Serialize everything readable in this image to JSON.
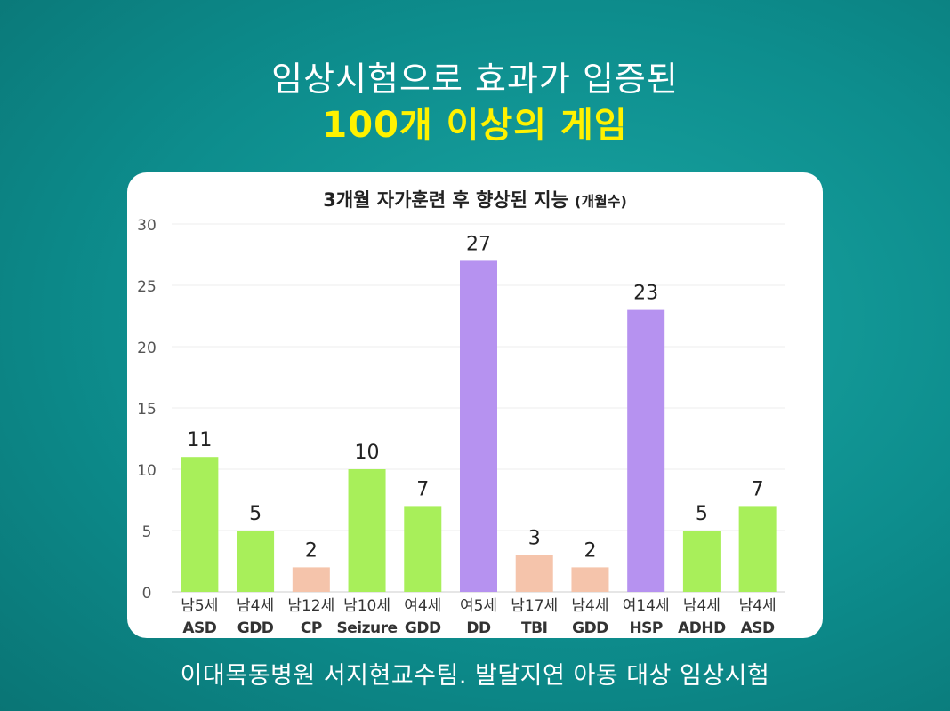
{
  "headline": {
    "line1": "임상시험으로 효과가 입증된",
    "line2": "100개 이상의 게임"
  },
  "source_note": "이대목동병원 서지현교수팀. 발달지연 아동 대상 임상시험",
  "chart_data": {
    "type": "bar",
    "title": "3개월 자가훈련 후 향상된 지능",
    "title_unit": "(개월수)",
    "categories": [
      {
        "line1": "남5세",
        "line2": "ASD"
      },
      {
        "line1": "남4세",
        "line2": "GDD"
      },
      {
        "line1": "남12세",
        "line2": "CP"
      },
      {
        "line1": "남10세",
        "line2": "Seizure"
      },
      {
        "line1": "여4세",
        "line2": "GDD"
      },
      {
        "line1": "여5세",
        "line2": "DD"
      },
      {
        "line1": "남17세",
        "line2": "TBI"
      },
      {
        "line1": "남4세",
        "line2": "GDD"
      },
      {
        "line1": "여14세",
        "line2": "HSP"
      },
      {
        "line1": "남4세",
        "line2": "ADHD"
      },
      {
        "line1": "남4세",
        "line2": "ASD"
      }
    ],
    "values": [
      11,
      5,
      2,
      10,
      7,
      27,
      3,
      2,
      23,
      5,
      7
    ],
    "bar_colors": [
      "#a8ef5a",
      "#a8ef5a",
      "#f5c4ab",
      "#a8ef5a",
      "#a8ef5a",
      "#b692f0",
      "#f5c4ab",
      "#f5c4ab",
      "#b692f0",
      "#a8ef5a",
      "#a8ef5a"
    ],
    "ylim": [
      0,
      30
    ],
    "yticks": [
      0,
      5,
      10,
      15,
      20,
      25,
      30
    ],
    "grid": true,
    "data_labels": true
  }
}
